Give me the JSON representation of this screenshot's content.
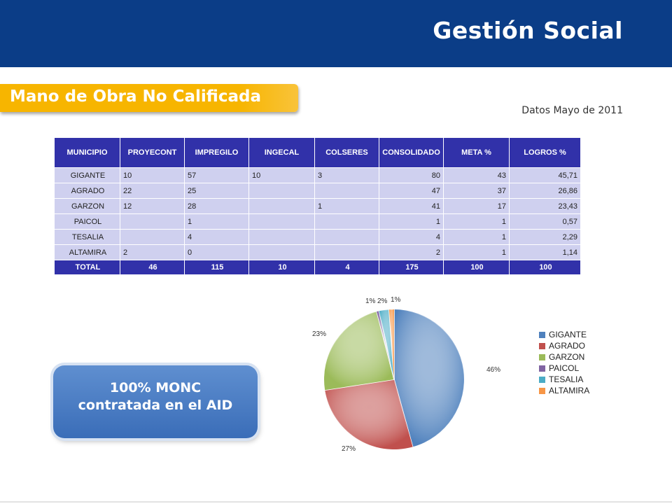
{
  "header": {
    "title": "Gestión Social"
  },
  "section": {
    "title": "Mano de Obra No Calificada"
  },
  "date_note": "Datos Mayo de 2011",
  "table": {
    "headers": [
      "MUNICIPIO",
      "PROYECONT",
      "IMPREGILO",
      "INGECAL",
      "COLSERES",
      "CONSOLIDADO",
      "META %",
      "LOGROS %"
    ],
    "rows": [
      [
        "GIGANTE",
        "10",
        "57",
        "10",
        "3",
        "80",
        "43",
        "45,71"
      ],
      [
        "AGRADO",
        "22",
        "25",
        "",
        "",
        "47",
        "37",
        "26,86"
      ],
      [
        "GARZON",
        "12",
        "28",
        "",
        "1",
        "41",
        "17",
        "23,43"
      ],
      [
        "PAICOL",
        "",
        "1",
        "",
        "",
        "1",
        "1",
        "0,57"
      ],
      [
        "TESALIA",
        "",
        "4",
        "",
        "",
        "4",
        "1",
        "2,29"
      ],
      [
        "ALTAMIRA",
        "2",
        "0",
        "",
        "",
        "2",
        "1",
        "1,14"
      ]
    ],
    "total": [
      "TOTAL",
      "46",
      "115",
      "10",
      "4",
      "175",
      "100",
      "100"
    ]
  },
  "callout": {
    "line1": "100% MONC",
    "line2": "contratada en el AID"
  },
  "chart_data": {
    "type": "pie",
    "categories": [
      "GIGANTE",
      "AGRADO",
      "GARZON",
      "PAICOL",
      "TESALIA",
      "ALTAMIRA"
    ],
    "values": [
      45.71,
      26.86,
      23.43,
      0.57,
      2.29,
      1.14
    ],
    "data_labels": [
      "46%",
      "27%",
      "23%",
      "1%",
      "2%",
      "1%"
    ],
    "colors": [
      "#4f81bd",
      "#c0504d",
      "#9bbb59",
      "#8064a2",
      "#4bacc6",
      "#f79646"
    ],
    "legend": "right"
  }
}
